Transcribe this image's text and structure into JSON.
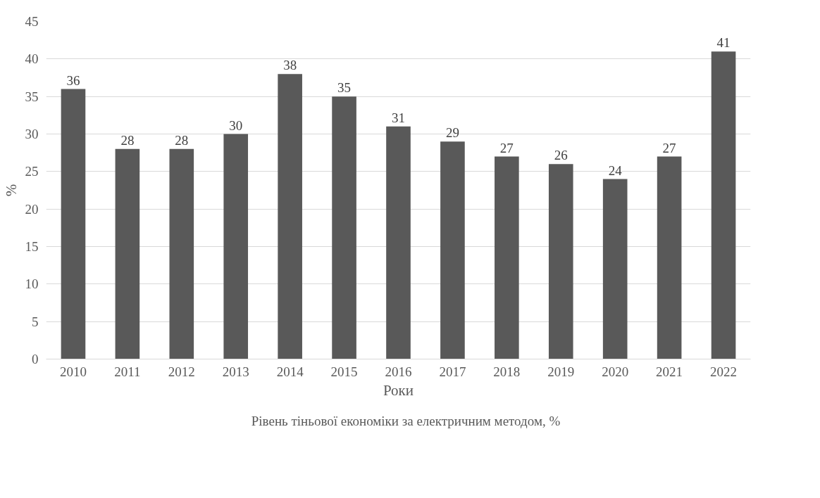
{
  "chart_data": {
    "type": "bar",
    "xlabel": "Роки",
    "ylabel": "%",
    "categories": [
      "2010",
      "2011",
      "2012",
      "2013",
      "2014",
      "2015",
      "2016",
      "2017",
      "2018",
      "2019",
      "2020",
      "2021",
      "2022"
    ],
    "series": [
      {
        "name": "Рівень тіньової економіки за електричним методом, %",
        "color": "#595959",
        "values": [
          36,
          28,
          28,
          30,
          38,
          35,
          31,
          29,
          27,
          26,
          24,
          27,
          41
        ]
      }
    ],
    "ylim": [
      0,
      45
    ],
    "yticks": [
      0,
      5,
      10,
      15,
      20,
      25,
      30,
      35,
      40,
      45
    ],
    "grid": "y",
    "legend": "bottom",
    "data_labels": true
  }
}
